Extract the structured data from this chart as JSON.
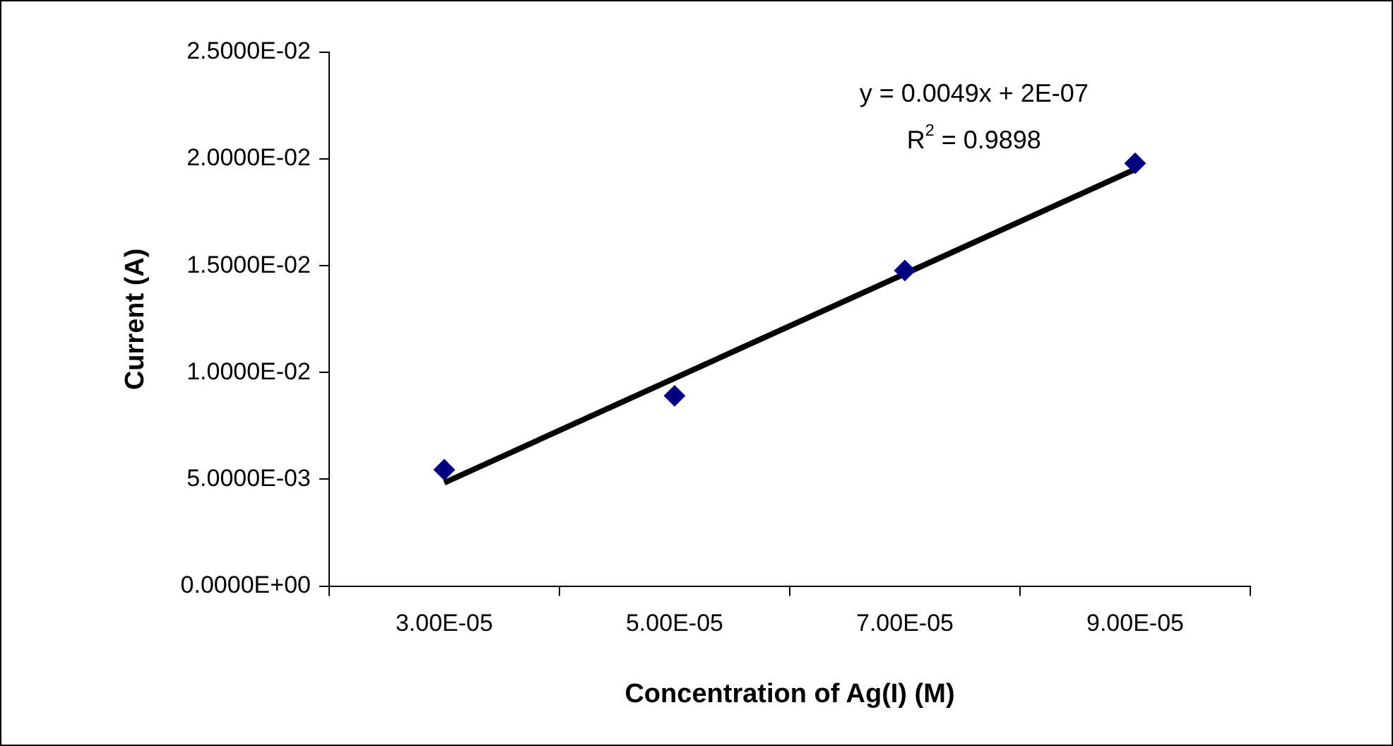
{
  "chart_data": {
    "type": "scatter",
    "xlabel": "Concentration of Ag(I) (M)",
    "ylabel": "Current (A)",
    "categories": [
      "3.00E-05",
      "5.00E-05",
      "7.00E-05",
      "9.00E-05"
    ],
    "series": [
      {
        "color": "#000080",
        "marker": "diamond",
        "values": [
          0.00545,
          0.00891,
          0.01478,
          0.0198
        ]
      },
      {
        "type": "line",
        "color": "#000000",
        "marker": "none",
        "line_style": "solid",
        "x": [
          "3.00E-05",
          "9.00E-05"
        ],
        "values": [
          0.00484,
          0.01952
        ]
      }
    ],
    "ylim": [
      0,
      0.025
    ],
    "yticks": [
      {
        "value": 0,
        "label": "0.0000E+00"
      },
      {
        "value": 0.005,
        "label": "5.0000E-03"
      },
      {
        "value": 0.01,
        "label": "1.0000E-02"
      },
      {
        "value": 0.015,
        "label": "1.5000E-02"
      },
      {
        "value": 0.02,
        "label": "2.0000E-02"
      },
      {
        "value": 0.025,
        "label": "2.5000E-02"
      }
    ],
    "grid": false,
    "legend": false,
    "annotations": [
      "y = 0.0049x + 2E-07",
      "R$^{2}$ = 0.9898"
    ]
  }
}
